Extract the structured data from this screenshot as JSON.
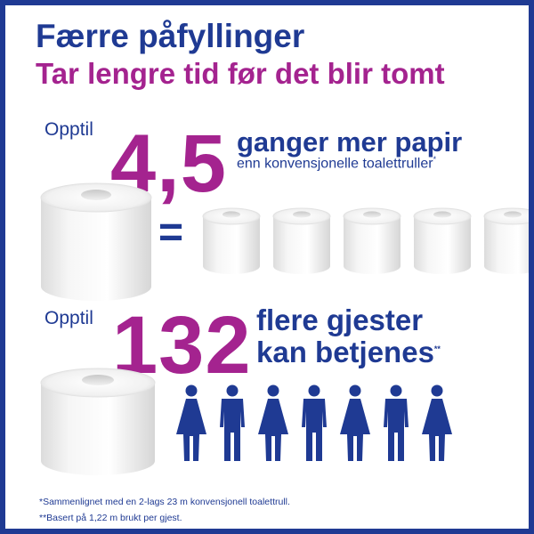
{
  "headline": {
    "title": "Færre påfyllinger",
    "subtitle": "Tar lengre tid før det blir tomt"
  },
  "stat1": {
    "prefix": "Opptil",
    "number": "4,5",
    "line1": "ganger mer papir",
    "line2": "enn konvensjonelle toalettruller",
    "mark": "*",
    "equals": "=",
    "small_rolls": 5
  },
  "stat2": {
    "prefix": "Opptil",
    "number": "132",
    "line1": "flere gjester",
    "line2": "kan betjenes",
    "mark": "**",
    "people": [
      "female",
      "male",
      "female",
      "male",
      "female",
      "male",
      "female"
    ]
  },
  "footnotes": {
    "note1": "*Sammenlignet med en 2-lags 23 m konvensjonell toalettrull.",
    "note2": "**Basert på 1,22 m brukt per gjest."
  },
  "colors": {
    "navy": "#1f3a93",
    "purple": "#a4238f"
  },
  "icons": {
    "big_roll": "toilet-roll-icon",
    "small_roll": "toilet-roll-icon",
    "person_female": "female-person-icon",
    "person_male": "male-person-icon"
  }
}
